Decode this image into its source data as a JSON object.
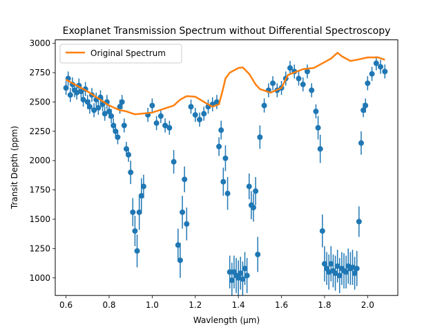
{
  "chart_data": {
    "type": "scatter",
    "title": "Exoplanet Transmission Spectrum without Differential Spectroscopy",
    "xlabel": "Wavlength (μm)",
    "ylabel": "Transit Depth (ppm)",
    "xlim": [
      0.55,
      2.14
    ],
    "ylim": [
      850,
      3030
    ],
    "xticks": [
      0.6,
      0.8,
      1.0,
      1.2,
      1.4,
      1.6,
      1.8,
      2.0
    ],
    "xtick_labels": [
      "0.6",
      "0.8",
      "1.0",
      "1.2",
      "1.4",
      "1.6",
      "1.8",
      "2.0"
    ],
    "yticks": [
      1000,
      1250,
      1500,
      1750,
      2000,
      2250,
      2500,
      2750,
      3000
    ],
    "ytick_labels": [
      "1000",
      "1250",
      "1500",
      "1750",
      "2000",
      "2250",
      "2500",
      "2750",
      "3000"
    ],
    "legend": {
      "placement": "upper-left",
      "entries": [
        "Original Spectrum"
      ]
    },
    "colors": {
      "data": "#1f77b4",
      "model": "#ff7f0e"
    },
    "series": [
      {
        "name": "Original Spectrum",
        "kind": "line",
        "x": [
          0.6,
          0.65,
          0.7,
          0.75,
          0.8,
          0.85,
          0.88,
          0.92,
          0.95,
          1.0,
          1.05,
          1.1,
          1.13,
          1.16,
          1.2,
          1.25,
          1.28,
          1.31,
          1.33,
          1.34,
          1.36,
          1.4,
          1.42,
          1.45,
          1.48,
          1.5,
          1.55,
          1.6,
          1.63,
          1.7,
          1.75,
          1.8,
          1.83,
          1.86,
          1.88,
          1.92,
          1.95,
          2.0,
          2.05,
          2.08
        ],
        "y": [
          2690,
          2640,
          2590,
          2530,
          2470,
          2430,
          2420,
          2395,
          2400,
          2410,
          2440,
          2470,
          2520,
          2550,
          2545,
          2490,
          2460,
          2480,
          2620,
          2700,
          2750,
          2790,
          2795,
          2740,
          2650,
          2610,
          2580,
          2620,
          2730,
          2780,
          2790,
          2840,
          2870,
          2920,
          2890,
          2850,
          2860,
          2880,
          2880,
          2860
        ]
      },
      {
        "name": "",
        "kind": "errorbar",
        "x": [
          0.6,
          0.61,
          0.62,
          0.63,
          0.64,
          0.65,
          0.66,
          0.67,
          0.68,
          0.69,
          0.7,
          0.71,
          0.72,
          0.73,
          0.74,
          0.75,
          0.76,
          0.77,
          0.78,
          0.79,
          0.8,
          0.81,
          0.82,
          0.83,
          0.84,
          0.85,
          0.86,
          0.87,
          0.88,
          0.89,
          0.9,
          0.91,
          0.92,
          0.93,
          0.94,
          0.95,
          0.96,
          0.98,
          1.0,
          1.02,
          1.04,
          1.06,
          1.08,
          1.1,
          1.12,
          1.13,
          1.14,
          1.15,
          1.16,
          1.18,
          1.2,
          1.22,
          1.24,
          1.26,
          1.28,
          1.3,
          1.31,
          1.32,
          1.33,
          1.34,
          1.35,
          1.36,
          1.37,
          1.38,
          1.39,
          1.4,
          1.41,
          1.42,
          1.43,
          1.44,
          1.45,
          1.46,
          1.47,
          1.48,
          1.49,
          1.5,
          1.52,
          1.54,
          1.56,
          1.58,
          1.6,
          1.62,
          1.64,
          1.66,
          1.68,
          1.7,
          1.72,
          1.74,
          1.76,
          1.77,
          1.78,
          1.79,
          1.8,
          1.81,
          1.82,
          1.83,
          1.84,
          1.85,
          1.86,
          1.87,
          1.88,
          1.89,
          1.9,
          1.91,
          1.92,
          1.93,
          1.94,
          1.95,
          1.96,
          1.97,
          1.98,
          1.99,
          2.0,
          2.02,
          2.04,
          2.06,
          2.08
        ],
        "y": [
          2620,
          2700,
          2560,
          2650,
          2600,
          2580,
          2640,
          2590,
          2520,
          2610,
          2500,
          2460,
          2560,
          2430,
          2520,
          2450,
          2540,
          2480,
          2400,
          2500,
          2420,
          2380,
          2300,
          2250,
          2200,
          2460,
          2500,
          2300,
          2100,
          2050,
          1900,
          1560,
          1400,
          1230,
          1560,
          1700,
          1780,
          2390,
          2470,
          2320,
          2380,
          2300,
          2280,
          1990,
          1280,
          1150,
          1560,
          1840,
          1460,
          2460,
          2390,
          2350,
          2400,
          2460,
          2480,
          2500,
          2120,
          2260,
          1820,
          2020,
          1720,
          1050,
          980,
          1050,
          1020,
          1000,
          1040,
          990,
          1080,
          1020,
          1780,
          1620,
          1600,
          1740,
          1200,
          2200,
          2470,
          2600,
          2660,
          2600,
          2620,
          2700,
          2790,
          2760,
          2700,
          2650,
          2760,
          2600,
          2420,
          2280,
          2100,
          1400,
          1120,
          1080,
          1050,
          1120,
          1060,
          1040,
          1100,
          1020,
          1080,
          1060,
          1050,
          1100,
          1080,
          1090,
          1040,
          1080,
          1480,
          2150,
          2430,
          2470,
          2660,
          2740,
          2830,
          2800,
          2760
        ],
        "err": [
          60,
          60,
          60,
          60,
          60,
          60,
          60,
          60,
          60,
          60,
          60,
          60,
          60,
          60,
          60,
          60,
          60,
          60,
          60,
          60,
          60,
          60,
          60,
          60,
          60,
          60,
          60,
          60,
          60,
          60,
          100,
          120,
          130,
          140,
          150,
          150,
          100,
          60,
          60,
          60,
          60,
          60,
          60,
          100,
          140,
          150,
          140,
          110,
          140,
          60,
          60,
          60,
          60,
          60,
          60,
          60,
          80,
          80,
          120,
          110,
          140,
          140,
          150,
          140,
          150,
          150,
          140,
          150,
          140,
          150,
          110,
          120,
          120,
          120,
          150,
          100,
          60,
          60,
          60,
          60,
          60,
          60,
          60,
          60,
          60,
          60,
          60,
          60,
          60,
          100,
          120,
          140,
          150,
          140,
          150,
          150,
          140,
          150,
          140,
          150,
          140,
          150,
          140,
          150,
          140,
          150,
          140,
          150,
          130,
          100,
          60,
          60,
          60,
          60,
          60,
          60,
          60
        ]
      }
    ]
  }
}
